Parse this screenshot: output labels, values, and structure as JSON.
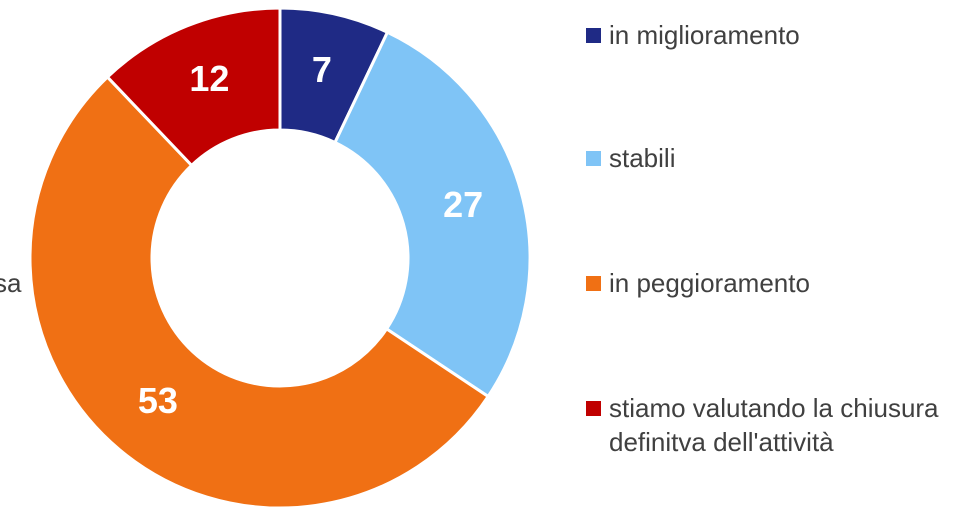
{
  "chart_data": {
    "type": "donut",
    "categories": [
      "in miglioramento",
      "stabili",
      "in peggioramento",
      "stiamo valutando la chiusura definitva dell'attività"
    ],
    "values": [
      7,
      27,
      53,
      12
    ],
    "colors": [
      "#1f2a85",
      "#7fc4f6",
      "#f07014",
      "#c00000"
    ],
    "annotation": "sa",
    "legend": "right"
  }
}
